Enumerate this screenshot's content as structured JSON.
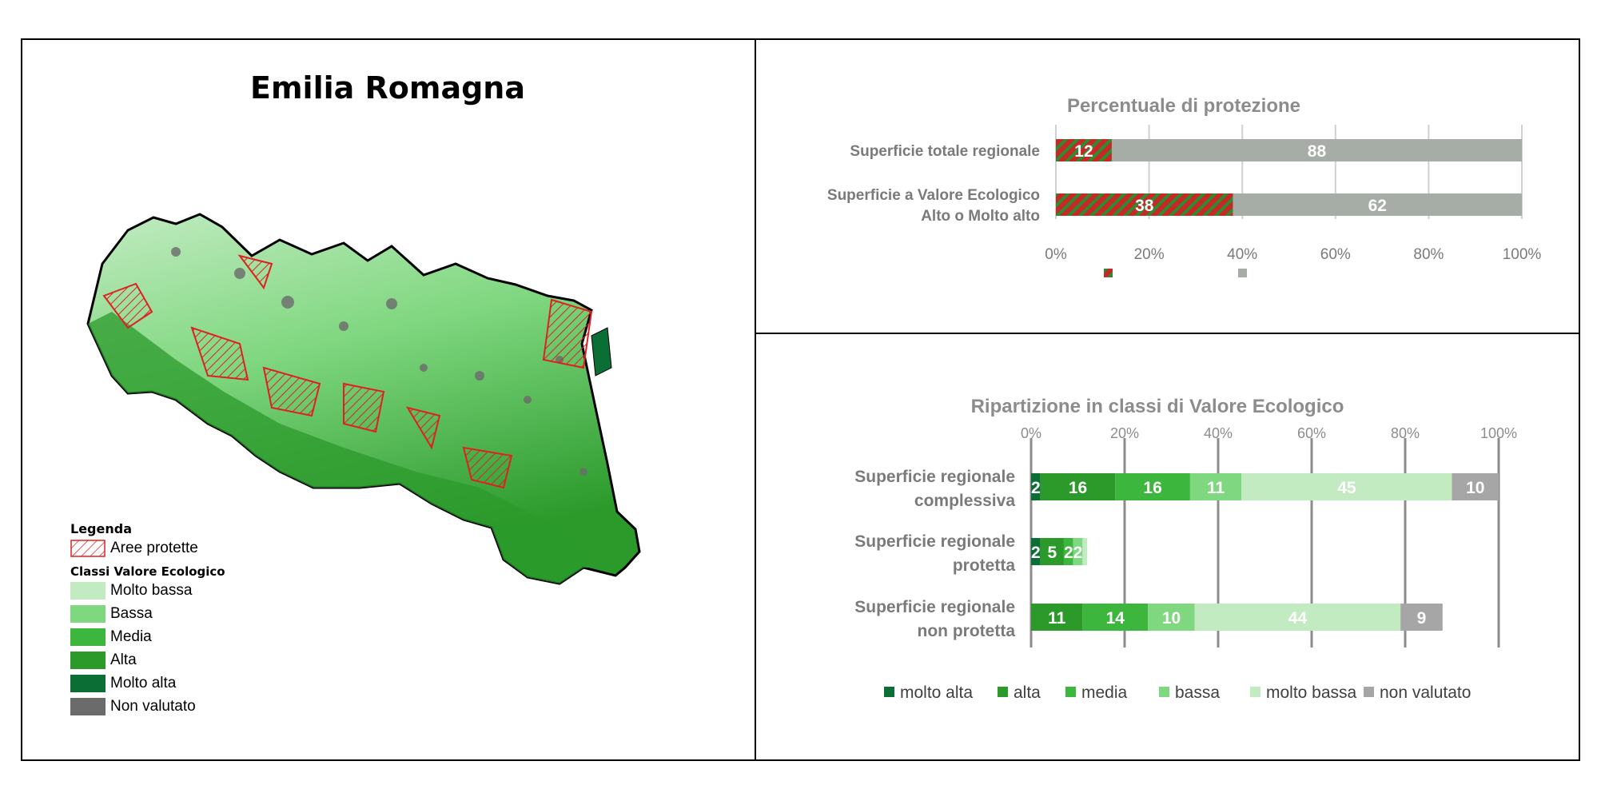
{
  "map": {
    "title": "Emilia Romagna",
    "legend": {
      "title": "Legenda",
      "protected_label": "Aree protette",
      "classes_title": "Classi Valore Ecologico",
      "classes": [
        {
          "label": "Molto bassa",
          "color": "#c2ebc2"
        },
        {
          "label": "Bassa",
          "color": "#7fd77f"
        },
        {
          "label": "Media",
          "color": "#3cb63c"
        },
        {
          "label": "Alta",
          "color": "#2b9a2b"
        },
        {
          "label": "Molto alta",
          "color": "#0b6f35"
        },
        {
          "label": "Non valutato",
          "color": "#6b6b6b"
        }
      ]
    },
    "colors": {
      "protected": "#e02020"
    }
  },
  "chart_data": [
    {
      "type": "bar",
      "orientation": "horizontal",
      "stacked": true,
      "title": "Percentuale di protezione",
      "categories": [
        "Superficie totale regionale",
        "Superficie a Valore Ecologico\nAlto o Molto alto"
      ],
      "series": [
        {
          "values": [
            12,
            38
          ],
          "color": "#c62828",
          "pattern": "hatch-red-green"
        },
        {
          "values": [
            88,
            62
          ],
          "color": "#a6aca6"
        }
      ],
      "xlim": [
        0,
        100
      ],
      "xticks": [
        "0%",
        "20%",
        "40%",
        "60%",
        "80%",
        "100%"
      ],
      "grid": true,
      "legend": "bottom"
    },
    {
      "type": "bar",
      "orientation": "horizontal",
      "stacked": true,
      "title": "Ripartizione in classi di Valore Ecologico",
      "categories": [
        "Superficie regionale\ncomplessiva",
        "Superficie regionale\nprotetta",
        "Superficie regionale\nnon protetta"
      ],
      "series": [
        {
          "name": "molto alta",
          "color": "#0b6f35",
          "values": [
            2,
            2,
            0
          ]
        },
        {
          "name": "alta",
          "color": "#2b9a2b",
          "values": [
            16,
            5,
            11
          ]
        },
        {
          "name": "media",
          "color": "#3cb63c",
          "values": [
            16,
            2,
            14
          ]
        },
        {
          "name": "bassa",
          "color": "#7fd77f",
          "values": [
            11,
            2,
            10
          ]
        },
        {
          "name": "molto bassa",
          "color": "#c2ebc2",
          "values": [
            45,
            1,
            44
          ]
        },
        {
          "name": "non valutato",
          "color": "#a6a6a6",
          "values": [
            10,
            0,
            9
          ]
        }
      ],
      "labels": [
        [
          "2",
          "16",
          "16",
          "11",
          "45",
          "10"
        ],
        [
          "2",
          "5",
          "2",
          "2",
          "",
          ""
        ],
        [
          "",
          "11",
          "14",
          "10",
          "44",
          "9"
        ]
      ],
      "xlim": [
        0,
        100
      ],
      "xticks": [
        "0%",
        "20%",
        "40%",
        "60%",
        "80%",
        "100%"
      ],
      "grid": true,
      "legend": "bottom"
    }
  ]
}
